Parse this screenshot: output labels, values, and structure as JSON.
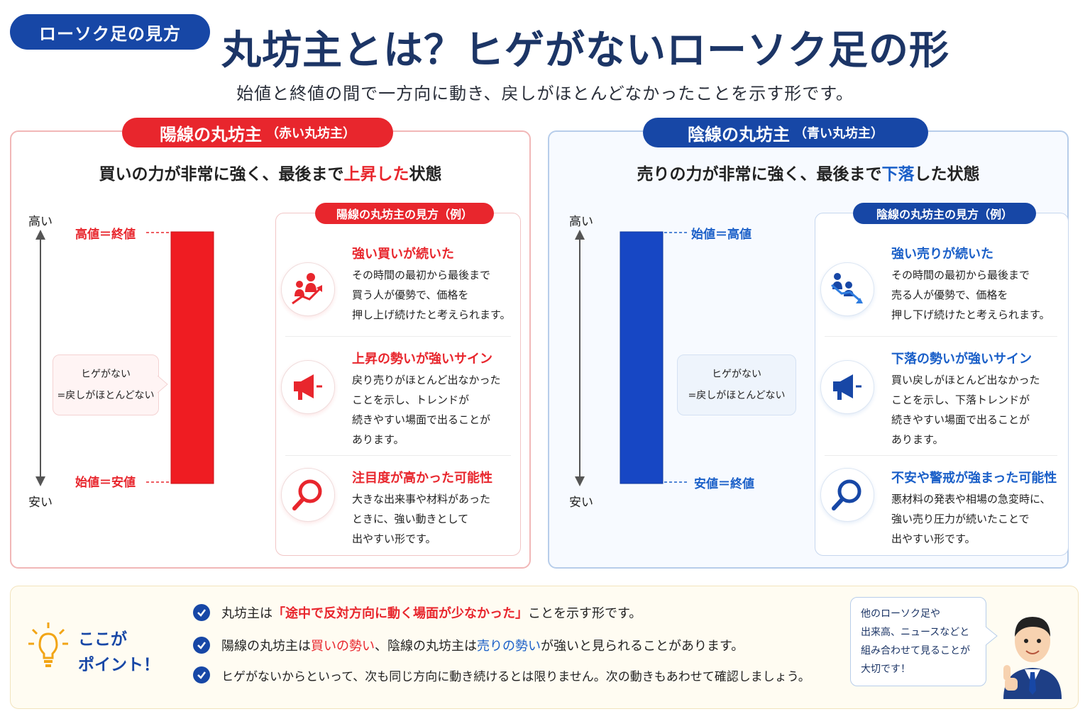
{
  "header": {
    "badge": "ローソク足の見方",
    "title": "丸坊主とは？ヒゲがないローソク足の形",
    "subtitle": "始値と終値の間で一方向に動き、戻しがほとんどなかったことを示す形です。"
  },
  "bullish": {
    "pill_main": "陽線の丸坊主",
    "pill_sub": "（赤い丸坊主）",
    "heading_pre": "買いの力が非常に強く、最後まで",
    "heading_hl": "上昇した",
    "heading_post": "状態",
    "axis_high": "高い",
    "axis_low": "安い",
    "label_top": "高値＝終値",
    "label_bottom": "始値＝安値",
    "callout_line1": "ヒゲがない",
    "callout_line2": "=戻しがほとんどない",
    "card_title": "陽線の丸坊主の見方（例）",
    "items": [
      {
        "title": "強い買いが続いた",
        "body": "その時間の最初から最後まで\n買う人が優勢で、価格を\n押し上げ続けたと考えられます。"
      },
      {
        "title": "上昇の勢いが強いサイン",
        "body": "戻り売りがほとんど出なかった\nことを示し、トレンドが\n続きやすい場面で出ることが\nあります。"
      },
      {
        "title": "注目度が高かった可能性",
        "body": "大きな出来事や材料があった\nときに、強い動きとして\n出やすい形です。"
      }
    ],
    "color": "#e8262d"
  },
  "bearish": {
    "pill_main": "陰線の丸坊主",
    "pill_sub": "（青い丸坊主）",
    "heading_pre": "売りの力が非常に強く、最後まで",
    "heading_hl": "下落",
    "heading_post": "した状態",
    "axis_high": "高い",
    "axis_low": "安い",
    "label_top": "始値＝高値",
    "label_bottom": "安値＝終値",
    "callout_line1": "ヒゲがない",
    "callout_line2": "=戻しがほとんどない",
    "card_title": "陰線の丸坊主の見方（例）",
    "items": [
      {
        "title": "強い売りが続いた",
        "body": "その時間の最初から最後まで\n売る人が優勢で、価格を\n押し下げ続けたと考えられます。"
      },
      {
        "title": "下落の勢いが強いサイン",
        "body": "買い戻しがほとんど出なかった\nことを示し、下落トレンドが\n続きやすい場面で出ることが\nあります。"
      },
      {
        "title": "不安や警戒が強まった可能性",
        "body": "悪材料の発表や相場の急変時に、\n強い売り圧力が続いたことで\n出やすい形です。"
      }
    ],
    "color": "#1747c4"
  },
  "points": {
    "title_line1": "ここが",
    "title_line2": "ポイント！",
    "row1_pre": "丸坊主は",
    "row1_hl": "「途中で反対方向に動く場面が少なかった」",
    "row1_post": "ことを示す形です。",
    "row2_a": "陽線の丸坊主は",
    "row2_b": "買いの勢い",
    "row2_c": "、陰線の丸坊主は",
    "row2_d": "売りの勢い",
    "row2_e": "が強いと見られることがあります。",
    "row3": "ヒゲがないからといって、次も同じ方向に動き続けるとは限りません。次の動きもあわせて確認しましょう。",
    "speech": "他のローソク足や\n出来高、ニュースなどと\n組み合わせて見ることが\n大切です！"
  }
}
